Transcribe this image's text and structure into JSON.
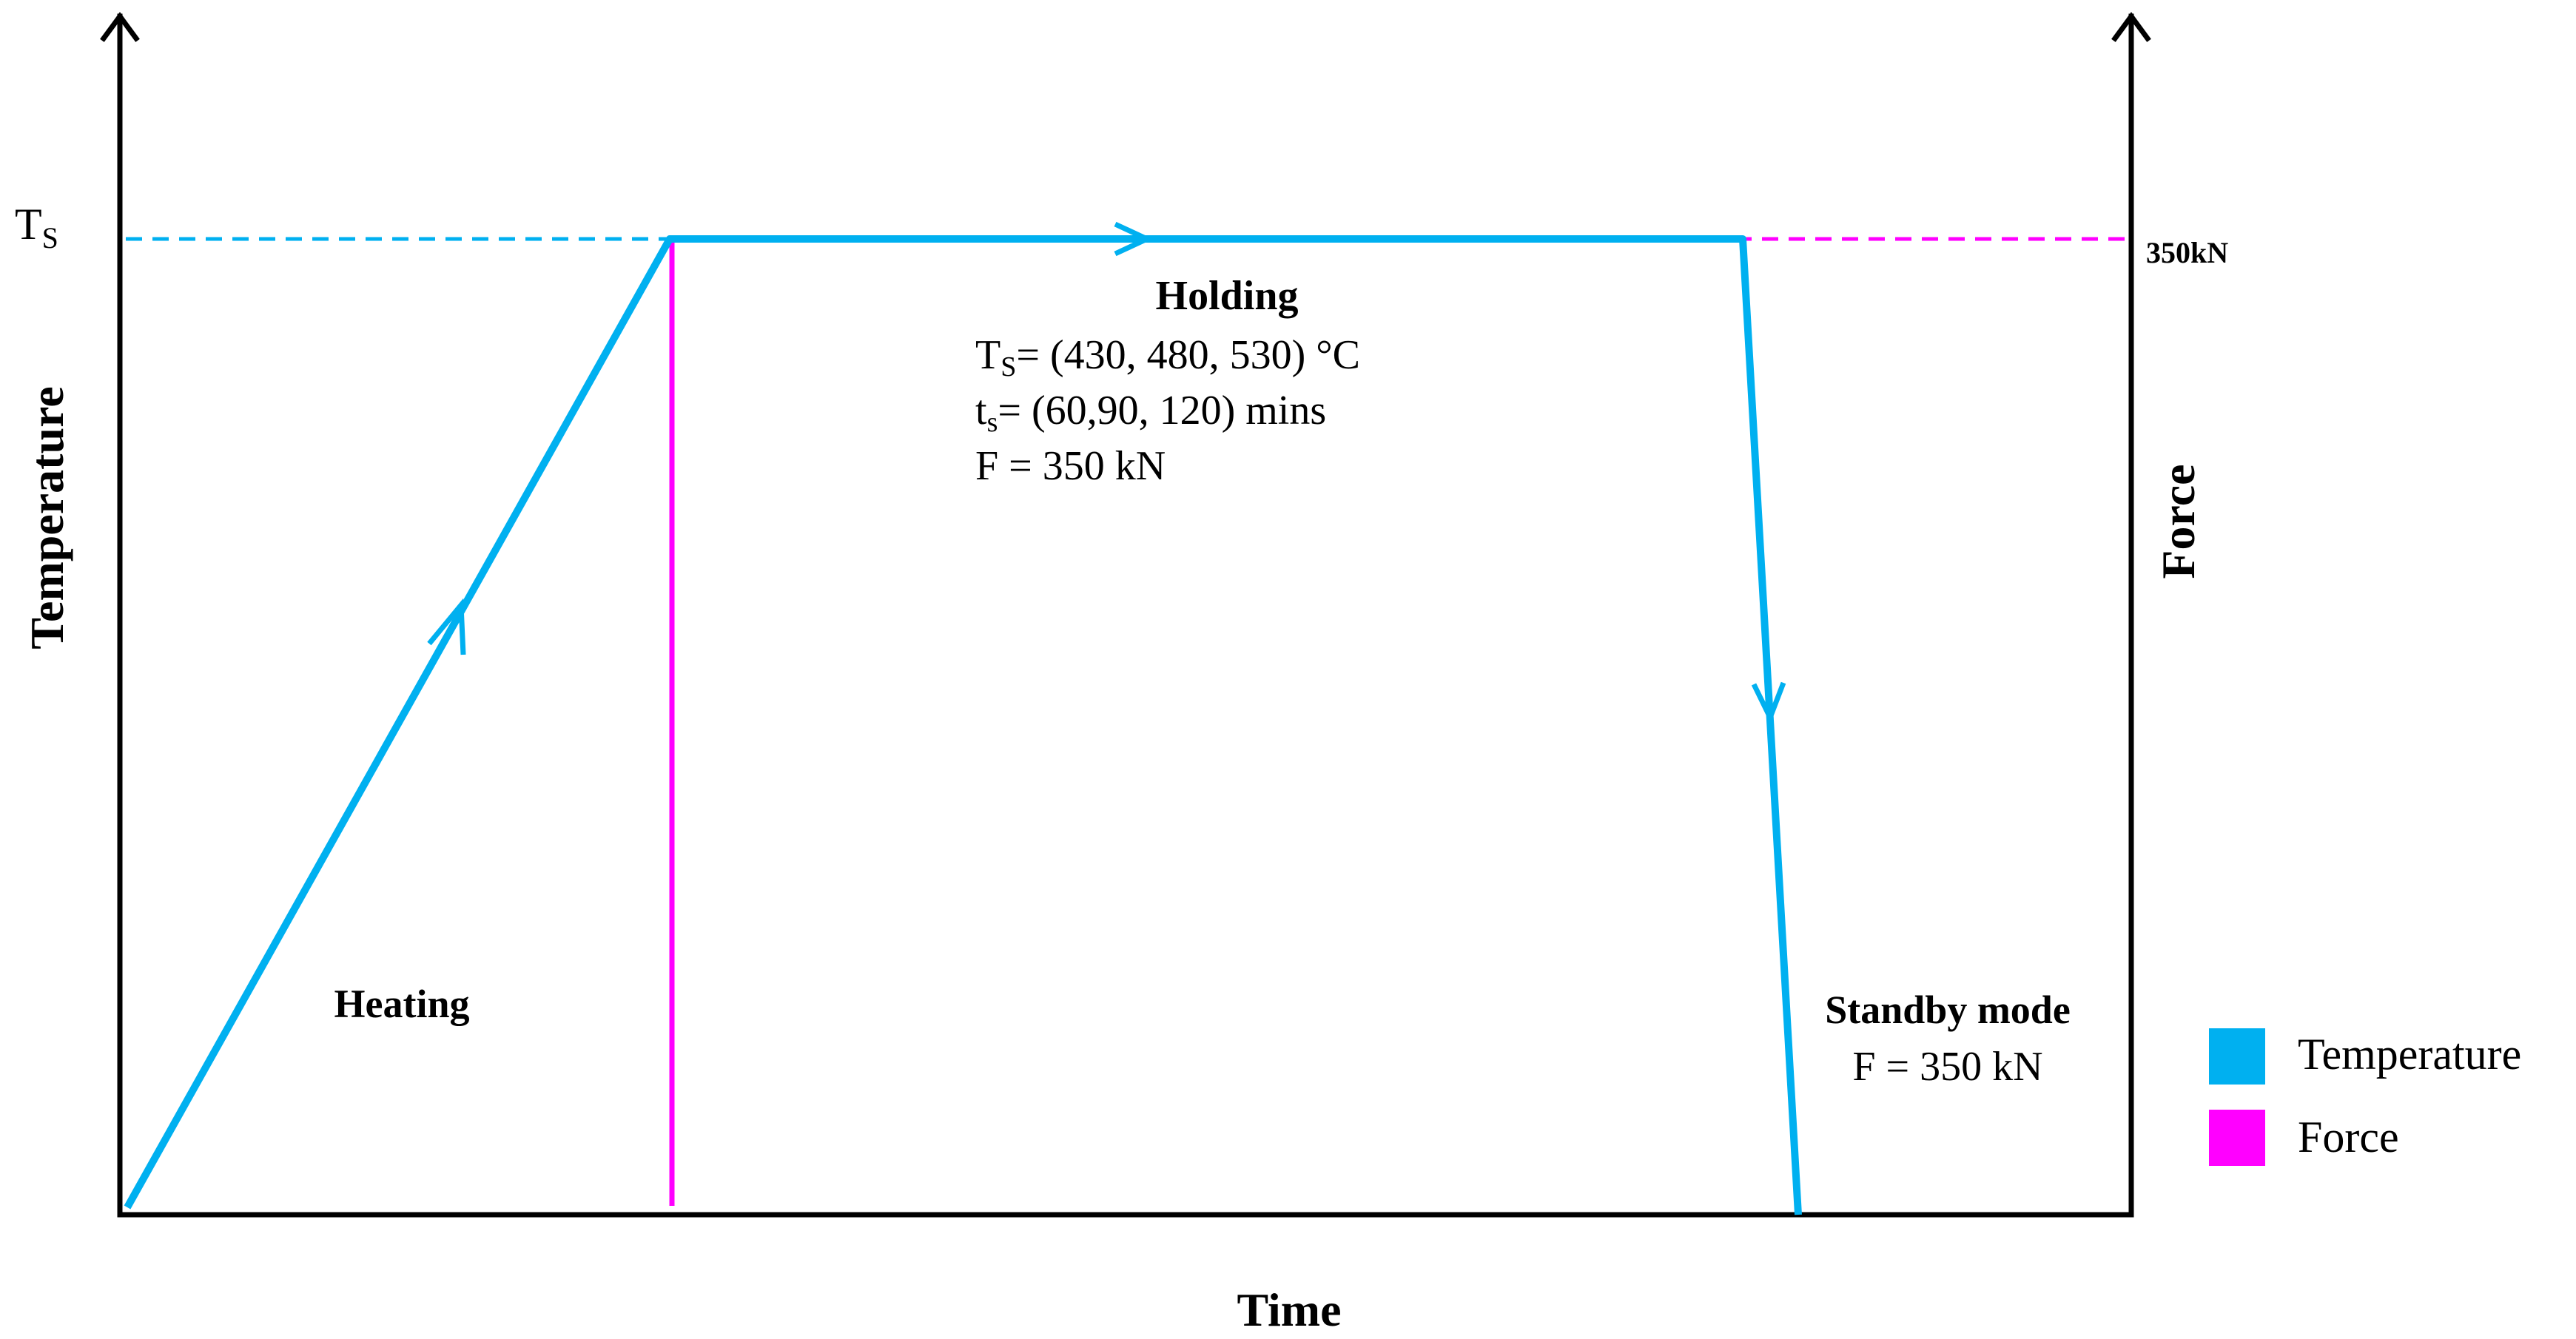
{
  "axes": {
    "left_label": "Temperature",
    "right_label": "Force",
    "bottom_label": "Time",
    "left_tick_main": "T",
    "left_tick_sub": "S",
    "right_tick": "350kN"
  },
  "phases": {
    "heating": "Heating",
    "holding": {
      "title": "Holding",
      "ts_main": "T",
      "ts_sub": "S",
      "ts_value": "= (430, 480, 530) °C",
      "time_main": "t",
      "time_sub": "s",
      "time_value": "=  (60,90, 120) mins",
      "force_line": "F = 350 kN"
    },
    "standby": {
      "title": "Standby mode",
      "force_line": "F = 350 kN"
    }
  },
  "legend": {
    "items": [
      {
        "label": "Temperature",
        "color": "#00B0F0"
      },
      {
        "label": "Force",
        "color": "#FF00FF"
      }
    ]
  },
  "colors": {
    "temperature": "#00B0F0",
    "force": "#FF00FF",
    "axis": "#000000"
  }
}
